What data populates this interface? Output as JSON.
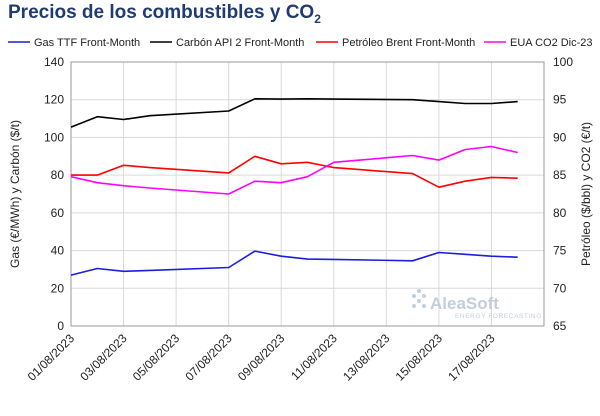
{
  "title": {
    "main": "Precios de los combustibles y CO",
    "sub": "2"
  },
  "chart_data": {
    "type": "line",
    "x": [
      "01/08/2023",
      "02/08/2023",
      "03/08/2023",
      "04/08/2023",
      "07/08/2023",
      "08/08/2023",
      "09/08/2023",
      "10/08/2023",
      "11/08/2023",
      "14/08/2023",
      "15/08/2023",
      "16/08/2023",
      "17/08/2023",
      "18/08/2023"
    ],
    "x_tick_labels": [
      "01/08/2023",
      "03/08/2023",
      "05/08/2023",
      "07/08/2023",
      "09/08/2023",
      "11/08/2023",
      "13/08/2023",
      "15/08/2023",
      "17/08/2023"
    ],
    "y_left": {
      "label": "Gas (€/MWh) y Carbón ($/t)",
      "ylim": [
        0,
        140
      ],
      "ticks": [
        0,
        20,
        40,
        60,
        80,
        100,
        120,
        140
      ]
    },
    "y_right": {
      "label": "Petróleo ($/bbl) y CO2 (€/t)",
      "ylim": [
        65,
        100
      ],
      "ticks": [
        65,
        70,
        75,
        80,
        85,
        90,
        95,
        100
      ]
    },
    "grid": true,
    "legend_position": "top",
    "series": [
      {
        "name": "Gas TTF Front-Month",
        "axis": "left",
        "color": "#1c1cdd",
        "values": [
          27.0,
          30.5,
          29.0,
          29.5,
          31.0,
          39.7,
          37.0,
          35.5,
          35.3,
          34.6,
          39.0,
          38.0,
          37.0,
          36.5
        ]
      },
      {
        "name": "Carbón API 2 Front-Month",
        "axis": "left",
        "color": "#000000",
        "values": [
          105.5,
          111.0,
          109.5,
          111.5,
          114.0,
          120.5,
          120.3,
          120.5,
          120.3,
          120.0,
          119.0,
          118.0,
          118.0,
          119.0
        ]
      },
      {
        "name": "Petróleo Brent Front-Month",
        "axis": "right",
        "color": "#ff0000",
        "values": [
          85.0,
          85.0,
          86.3,
          86.0,
          85.3,
          87.5,
          86.5,
          86.7,
          86.0,
          85.2,
          83.4,
          84.2,
          84.7,
          84.6
        ]
      },
      {
        "name": "EUA CO2 Dic-23",
        "axis": "right",
        "color": "#ff00ff",
        "values": [
          84.8,
          84.0,
          83.6,
          83.3,
          82.5,
          84.2,
          84.0,
          84.8,
          86.7,
          87.6,
          87.0,
          88.4,
          88.8,
          88.0
        ]
      }
    ]
  },
  "watermark": {
    "brand": "AleaSoft",
    "tagline": "ENERGY FORECASTING"
  }
}
